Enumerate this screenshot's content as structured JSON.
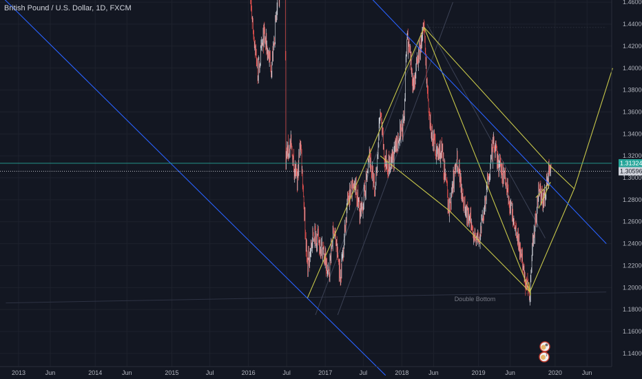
{
  "header": {
    "title": "British Pound / U.S. Dollar, 1D, FXCM"
  },
  "colors": {
    "background": "#131722",
    "grid": "#1e222d",
    "candle_up": "#d1d4dc",
    "candle_down": "#ef5350",
    "yellow_lines": "#c8c84a",
    "blue_lines": "#2962ff",
    "faint_lines": "#3c4255",
    "current_price": "#26a69a",
    "last_close": "#d1d4dc"
  },
  "chart_data": {
    "type": "candlestick",
    "symbol": "British Pound / U.S. Dollar",
    "interval": "1D",
    "source": "FXCM",
    "y_ticks": [
      "1.46000",
      "1.44000",
      "1.42000",
      "1.40000",
      "1.38000",
      "1.36000",
      "1.34000",
      "1.32000",
      "1.30000",
      "1.28000",
      "1.26000",
      "1.24000",
      "1.22000",
      "1.20000",
      "1.18000",
      "1.16000",
      "1.14000"
    ],
    "x_ticks": [
      "2013",
      "Jun",
      "2014",
      "Jun",
      "2015",
      "Jul",
      "2016",
      "Jul",
      "2017",
      "Jul",
      "2018",
      "Jun",
      "2019",
      "Jun",
      "2020",
      "Jun"
    ],
    "ylim": [
      1.128,
      1.462
    ],
    "price_labels": [
      {
        "value": "1.31324",
        "kind": "current"
      },
      {
        "value": "1.30596",
        "kind": "last"
      }
    ],
    "annotations": [
      {
        "text": "Double Bottom",
        "x": "2018-12-15",
        "y": 1.1875
      }
    ],
    "series_path": [
      [
        "2016-01-01",
        1.478
      ],
      [
        "2016-02-15",
        1.395
      ],
      [
        "2016-03-15",
        1.43
      ],
      [
        "2016-04-20",
        1.4
      ],
      [
        "2016-05-20",
        1.46
      ],
      [
        "2016-06-23",
        1.5
      ],
      [
        "2016-06-27",
        1.32
      ],
      [
        "2016-07-20",
        1.33
      ],
      [
        "2016-08-20",
        1.295
      ],
      [
        "2016-09-05",
        1.335
      ],
      [
        "2016-10-07",
        1.22
      ],
      [
        "2016-11-10",
        1.25
      ],
      [
        "2016-12-20",
        1.235
      ],
      [
        "2017-01-16",
        1.21
      ],
      [
        "2017-02-10",
        1.255
      ],
      [
        "2017-03-14",
        1.21
      ],
      [
        "2017-04-20",
        1.285
      ],
      [
        "2017-05-25",
        1.29
      ],
      [
        "2017-06-20",
        1.265
      ],
      [
        "2017-08-01",
        1.32
      ],
      [
        "2017-08-25",
        1.285
      ],
      [
        "2017-09-20",
        1.36
      ],
      [
        "2017-10-10",
        1.315
      ],
      [
        "2017-11-10",
        1.31
      ],
      [
        "2017-12-20",
        1.34
      ],
      [
        "2018-01-10",
        1.35
      ],
      [
        "2018-01-25",
        1.43
      ],
      [
        "2018-02-25",
        1.385
      ],
      [
        "2018-04-17",
        1.437
      ],
      [
        "2018-05-10",
        1.35
      ],
      [
        "2018-06-20",
        1.32
      ],
      [
        "2018-07-10",
        1.325
      ],
      [
        "2018-08-15",
        1.27
      ],
      [
        "2018-09-20",
        1.32
      ],
      [
        "2018-10-30",
        1.27
      ],
      [
        "2018-12-12",
        1.25
      ],
      [
        "2019-01-03",
        1.24
      ],
      [
        "2019-02-10",
        1.29
      ],
      [
        "2019-03-13",
        1.33
      ],
      [
        "2019-04-10",
        1.31
      ],
      [
        "2019-05-10",
        1.3
      ],
      [
        "2019-06-05",
        1.27
      ],
      [
        "2019-07-10",
        1.245
      ],
      [
        "2019-08-12",
        1.205
      ],
      [
        "2019-09-03",
        1.196
      ],
      [
        "2019-09-15",
        1.24
      ],
      [
        "2019-10-17",
        1.29
      ],
      [
        "2019-11-10",
        1.28
      ],
      [
        "2019-12-06",
        1.31
      ],
      [
        "2019-12-10",
        1.315
      ],
      [
        "2019-12-13",
        1.306
      ]
    ],
    "drawings": {
      "blue_descending_1": [
        [
          "2012-09-01",
          1.473
        ],
        [
          "2017-10-15",
          1.12
        ]
      ],
      "blue_descending_2": [
        [
          "2017-08-01",
          1.465
        ],
        [
          "2020-09-01",
          1.24
        ]
      ],
      "yellow_channel_lower": [
        [
          "2016-10-07",
          1.19
        ],
        [
          "2018-04-17",
          1.437
        ]
      ],
      "yellow_channel_upper_faint": [
        [
          "2016-11-15",
          1.175
        ],
        [
          "2018-04-17",
          1.437
        ]
      ],
      "yellow_top_to_bottom": [
        [
          "2018-04-17",
          1.437
        ],
        [
          "2019-09-03",
          1.196
        ]
      ],
      "yellow_top_to_target": [
        [
          "2018-04-17",
          1.437
        ],
        [
          "2019-12-13",
          1.31
        ],
        [
          "2020-04-01",
          1.29
        ]
      ],
      "yellow_inner": [
        [
          "2017-09-20",
          1.32
        ],
        [
          "2018-08-15",
          1.27
        ],
        [
          "2019-09-03",
          1.196
        ]
      ],
      "yellow_projection": [
        [
          "2019-09-03",
          1.196
        ],
        [
          "2020-04-01",
          1.29
        ],
        [
          "2020-10-01",
          1.4
        ]
      ],
      "double_bottom_line": [
        [
          "2012-11-01",
          1.186
        ],
        [
          "2020-09-01",
          1.196
        ]
      ],
      "resistance_line": [
        [
          "2018-04-17",
          1.437
        ],
        [
          "2020-09-01",
          1.437
        ]
      ]
    }
  },
  "icons": {
    "event_icon_1": "news-icon",
    "event_icon_2": "dividend-icon"
  }
}
